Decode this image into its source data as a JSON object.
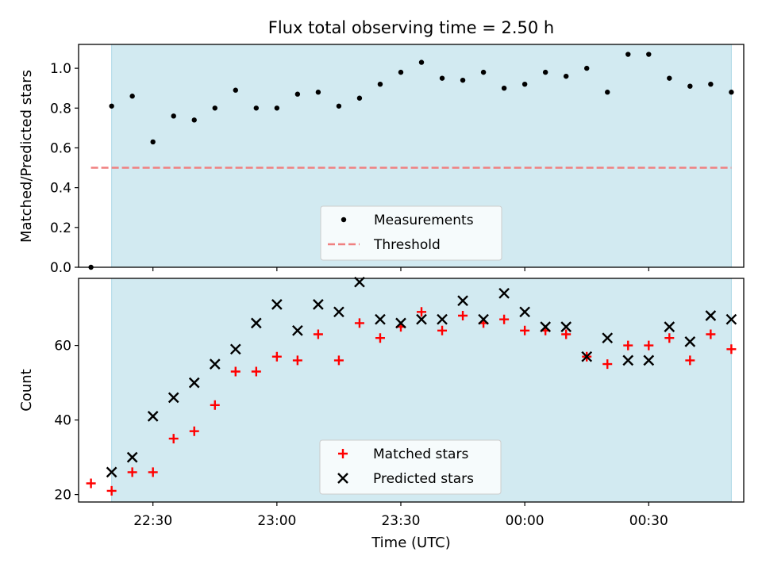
{
  "figure": {
    "title": "Flux total observing time = 2.50 h"
  },
  "chart_data": [
    {
      "type": "scatter",
      "panel": "top",
      "title": "Flux total observing time = 2.50 h",
      "xlabel": "",
      "ylabel": "Matched/Predicted stars",
      "xlim": [
        "22:12",
        "00:53"
      ],
      "ylim": [
        0,
        1.12
      ],
      "yticks": [
        0.0,
        0.2,
        0.4,
        0.6,
        0.8,
        1.0
      ],
      "ytick_labels": [
        "0.0",
        "0.2",
        "0.4",
        "0.6",
        "0.8",
        "1.0"
      ],
      "shaded_span": [
        "22:20",
        "00:50"
      ],
      "threshold": {
        "name": "Threshold",
        "value": 0.5,
        "x_start": "22:15",
        "x_end": "00:50",
        "color": "#f08080"
      },
      "legend": {
        "placement": "lower center",
        "entries": [
          "Measurements",
          "Threshold"
        ]
      },
      "series": [
        {
          "name": "Measurements",
          "color": "#000000",
          "x": [
            "22:15",
            "22:20",
            "22:25",
            "22:30",
            "22:35",
            "22:40",
            "22:45",
            "22:50",
            "22:55",
            "23:00",
            "23:05",
            "23:10",
            "23:15",
            "23:20",
            "23:25",
            "23:30",
            "23:35",
            "23:40",
            "23:45",
            "23:50",
            "23:55",
            "00:00",
            "00:05",
            "00:10",
            "00:15",
            "00:20",
            "00:25",
            "00:30",
            "00:35",
            "00:40",
            "00:45",
            "00:50"
          ],
          "y": [
            0.0,
            0.81,
            0.86,
            0.63,
            0.76,
            0.74,
            0.8,
            0.89,
            0.8,
            0.8,
            0.87,
            0.88,
            0.81,
            0.85,
            0.92,
            0.98,
            1.03,
            0.95,
            0.94,
            0.98,
            0.9,
            0.92,
            0.98,
            0.96,
            1.0,
            0.88,
            1.07,
            1.07,
            0.95,
            0.91,
            0.92,
            0.88
          ]
        }
      ]
    },
    {
      "type": "scatter",
      "panel": "bottom",
      "xlabel": "Time (UTC)",
      "ylabel": "Count",
      "xlim": [
        "22:12",
        "00:53"
      ],
      "ylim": [
        18,
        78
      ],
      "xticks": [
        "22:30",
        "23:00",
        "23:30",
        "00:00",
        "00:30"
      ],
      "yticks": [
        20,
        40,
        60
      ],
      "ytick_labels": [
        "20",
        "40",
        "60"
      ],
      "shaded_span": [
        "22:20",
        "00:50"
      ],
      "legend": {
        "placement": "lower center",
        "entries": [
          "Matched stars",
          "Predicted stars"
        ]
      },
      "series": [
        {
          "name": "Matched stars",
          "marker": "plus",
          "color": "#ff0000",
          "x": [
            "22:15",
            "22:20",
            "22:25",
            "22:30",
            "22:35",
            "22:40",
            "22:45",
            "22:50",
            "22:55",
            "23:00",
            "23:05",
            "23:10",
            "23:15",
            "23:20",
            "23:25",
            "23:30",
            "23:35",
            "23:40",
            "23:45",
            "23:50",
            "23:55",
            "00:00",
            "00:05",
            "00:10",
            "00:15",
            "00:20",
            "00:25",
            "00:30",
            "00:35",
            "00:40",
            "00:45",
            "00:50"
          ],
          "y": [
            23,
            21,
            26,
            26,
            35,
            37,
            44,
            53,
            53,
            57,
            56,
            63,
            56,
            66,
            62,
            65,
            69,
            64,
            68,
            66,
            67,
            64,
            64,
            63,
            57,
            55,
            60,
            60,
            62,
            56,
            63,
            59
          ]
        },
        {
          "name": "Predicted stars",
          "marker": "x",
          "color": "#000000",
          "x": [
            "22:20",
            "22:25",
            "22:30",
            "22:35",
            "22:40",
            "22:45",
            "22:50",
            "22:55",
            "23:00",
            "23:05",
            "23:10",
            "23:15",
            "23:20",
            "23:25",
            "23:30",
            "23:35",
            "23:40",
            "23:45",
            "23:50",
            "23:55",
            "00:00",
            "00:05",
            "00:10",
            "00:15",
            "00:20",
            "00:25",
            "00:30",
            "00:35",
            "00:40",
            "00:45",
            "00:50"
          ],
          "y": [
            26,
            30,
            41,
            46,
            50,
            55,
            59,
            66,
            71,
            64,
            71,
            69,
            77,
            67,
            66,
            67,
            67,
            72,
            67,
            74,
            69,
            65,
            65,
            57,
            62,
            56,
            56,
            65,
            61,
            68,
            67
          ]
        }
      ]
    }
  ],
  "colors": {
    "shade": "#add8e6",
    "threshold": "#f08080",
    "matched": "#ff0000",
    "predicted": "#000000",
    "measurements": "#000000"
  }
}
